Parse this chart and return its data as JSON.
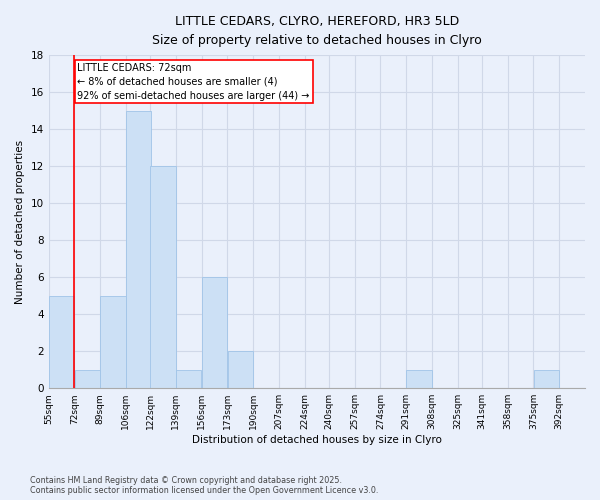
{
  "title_line1": "LITTLE CEDARS, CLYRO, HEREFORD, HR3 5LD",
  "title_line2": "Size of property relative to detached houses in Clyro",
  "xlabel": "Distribution of detached houses by size in Clyro",
  "ylabel": "Number of detached properties",
  "footer_line1": "Contains HM Land Registry data © Crown copyright and database right 2025.",
  "footer_line2": "Contains public sector information licensed under the Open Government Licence v3.0.",
  "bin_labels": [
    "55sqm",
    "72sqm",
    "89sqm",
    "106sqm",
    "122sqm",
    "139sqm",
    "156sqm",
    "173sqm",
    "190sqm",
    "207sqm",
    "224sqm",
    "240sqm",
    "257sqm",
    "274sqm",
    "291sqm",
    "308sqm",
    "325sqm",
    "341sqm",
    "358sqm",
    "375sqm",
    "392sqm"
  ],
  "bin_edges": [
    55,
    72,
    89,
    106,
    122,
    139,
    156,
    173,
    190,
    207,
    224,
    240,
    257,
    274,
    291,
    308,
    325,
    341,
    358,
    375,
    392
  ],
  "counts": [
    5,
    1,
    5,
    15,
    12,
    1,
    6,
    2,
    0,
    0,
    0,
    0,
    0,
    0,
    1,
    0,
    0,
    0,
    0,
    1,
    0
  ],
  "bar_color": "#cce0f5",
  "bar_edge_color": "#a0c4e8",
  "grid_color": "#d0d8e8",
  "property_line_x": 72,
  "property_line_color": "red",
  "annotation_text": "LITTLE CEDARS: 72sqm\n← 8% of detached houses are smaller (4)\n92% of semi-detached houses are larger (44) →",
  "annotation_box_color": "white",
  "annotation_box_edge": "red",
  "ylim": [
    0,
    18
  ],
  "yticks": [
    0,
    2,
    4,
    6,
    8,
    10,
    12,
    14,
    16,
    18
  ],
  "background_color": "#eaf0fb"
}
